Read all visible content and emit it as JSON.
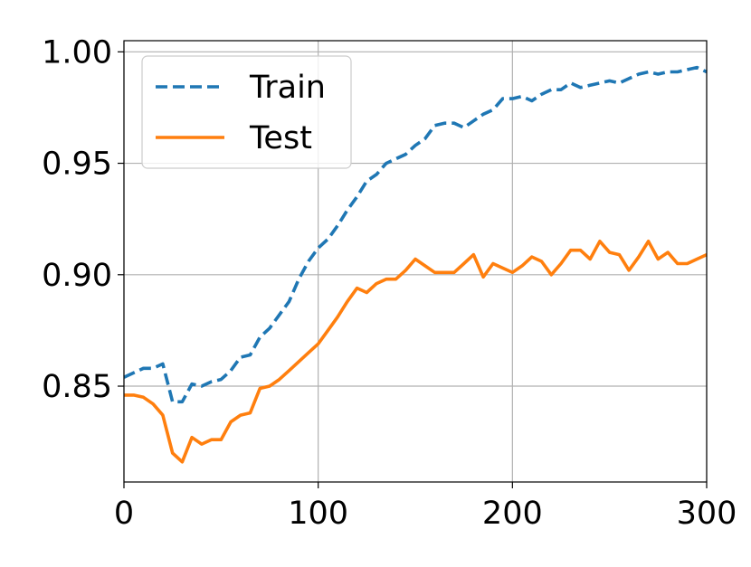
{
  "chart_data": {
    "type": "line",
    "title": "",
    "xlabel": "",
    "ylabel": "",
    "xlim": [
      0,
      300
    ],
    "ylim": [
      0.807,
      1.005
    ],
    "x_ticks": [
      0,
      100,
      200,
      300
    ],
    "x_tick_labels": [
      "0",
      "100",
      "200",
      "300"
    ],
    "y_ticks": [
      0.85,
      0.9,
      0.95,
      1.0
    ],
    "y_tick_labels": [
      "0.85",
      "0.90",
      "0.95",
      "1.00"
    ],
    "grid": true,
    "legend_position": "top-left",
    "series": [
      {
        "name": "Train",
        "color": "#1f77b4",
        "style": "dashed",
        "x": [
          0,
          5,
          10,
          15,
          20,
          25,
          30,
          35,
          40,
          45,
          50,
          55,
          60,
          65,
          70,
          75,
          80,
          85,
          90,
          95,
          100,
          105,
          110,
          115,
          120,
          125,
          130,
          135,
          140,
          145,
          150,
          155,
          160,
          165,
          170,
          175,
          180,
          185,
          190,
          195,
          200,
          205,
          210,
          215,
          220,
          225,
          230,
          235,
          240,
          245,
          250,
          255,
          260,
          265,
          270,
          275,
          280,
          285,
          290,
          295,
          300
        ],
        "values": [
          0.854,
          0.856,
          0.858,
          0.858,
          0.86,
          0.843,
          0.843,
          0.851,
          0.85,
          0.852,
          0.853,
          0.857,
          0.863,
          0.864,
          0.872,
          0.876,
          0.882,
          0.888,
          0.898,
          0.906,
          0.912,
          0.916,
          0.922,
          0.929,
          0.935,
          0.942,
          0.945,
          0.95,
          0.952,
          0.954,
          0.958,
          0.961,
          0.967,
          0.968,
          0.968,
          0.966,
          0.969,
          0.972,
          0.974,
          0.979,
          0.979,
          0.98,
          0.978,
          0.981,
          0.983,
          0.983,
          0.986,
          0.984,
          0.985,
          0.986,
          0.987,
          0.986,
          0.988,
          0.99,
          0.991,
          0.99,
          0.991,
          0.991,
          0.992,
          0.993,
          0.991
        ]
      },
      {
        "name": "Test",
        "color": "#ff7f0e",
        "style": "solid",
        "x": [
          0,
          5,
          10,
          15,
          20,
          25,
          30,
          35,
          40,
          45,
          50,
          55,
          60,
          65,
          70,
          75,
          80,
          85,
          90,
          95,
          100,
          105,
          110,
          115,
          120,
          125,
          130,
          135,
          140,
          145,
          150,
          155,
          160,
          165,
          170,
          175,
          180,
          185,
          190,
          195,
          200,
          205,
          210,
          215,
          220,
          225,
          230,
          235,
          240,
          245,
          250,
          255,
          260,
          265,
          270,
          275,
          280,
          285,
          290,
          295,
          300
        ],
        "values": [
          0.846,
          0.846,
          0.845,
          0.842,
          0.837,
          0.82,
          0.816,
          0.827,
          0.824,
          0.826,
          0.826,
          0.834,
          0.837,
          0.838,
          0.849,
          0.85,
          0.853,
          0.857,
          0.861,
          0.865,
          0.869,
          0.875,
          0.881,
          0.888,
          0.894,
          0.892,
          0.896,
          0.898,
          0.898,
          0.902,
          0.907,
          0.904,
          0.901,
          0.901,
          0.901,
          0.905,
          0.909,
          0.899,
          0.905,
          0.903,
          0.901,
          0.904,
          0.908,
          0.906,
          0.9,
          0.905,
          0.911,
          0.911,
          0.907,
          0.915,
          0.91,
          0.909,
          0.902,
          0.908,
          0.915,
          0.907,
          0.91,
          0.905,
          0.905,
          0.907,
          0.909
        ]
      }
    ]
  }
}
